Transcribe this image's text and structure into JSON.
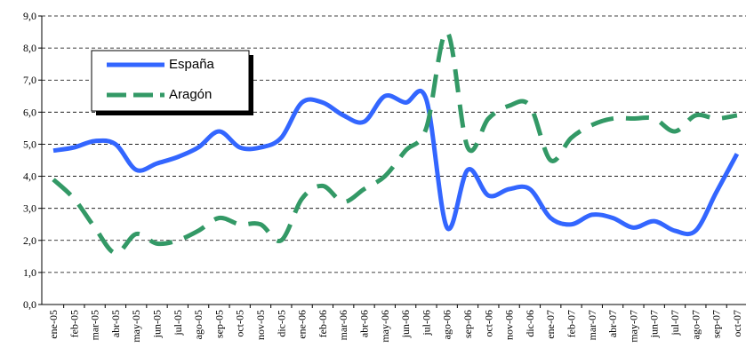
{
  "chart_data": {
    "type": "line",
    "categories": [
      "ene-05",
      "feb-05",
      "mar-05",
      "abr-05",
      "may-05",
      "jun-05",
      "jul-05",
      "ago-05",
      "sep-05",
      "oct-05",
      "nov-05",
      "dic-05",
      "ene-06",
      "feb-06",
      "mar-06",
      "abr-06",
      "may-06",
      "jun-06",
      "jul-06",
      "ago-06",
      "sep-06",
      "oct-06",
      "nov-06",
      "dic-06",
      "ene-07",
      "feb-07",
      "mar-07",
      "abr-07",
      "may-07",
      "jun-07",
      "jul-07",
      "ago-07",
      "sep-07",
      "oct-07"
    ],
    "series": [
      {
        "name": "España",
        "color": "#3366ff",
        "values": [
          4.8,
          4.9,
          5.1,
          5.0,
          4.2,
          4.4,
          4.6,
          4.9,
          5.4,
          4.9,
          4.9,
          5.2,
          6.3,
          6.3,
          5.9,
          5.7,
          6.5,
          6.3,
          6.4,
          2.4,
          4.2,
          3.4,
          3.6,
          3.6,
          2.7,
          2.5,
          2.8,
          2.7,
          2.4,
          2.6,
          2.3,
          2.3,
          3.5,
          4.7
        ]
      },
      {
        "name": "Aragón",
        "color": "#339966",
        "values": [
          3.9,
          3.3,
          2.4,
          1.6,
          2.2,
          1.9,
          2.0,
          2.3,
          2.7,
          2.5,
          2.5,
          2.0,
          3.3,
          3.7,
          3.2,
          3.6,
          4.0,
          4.8,
          5.5,
          8.5,
          4.9,
          5.8,
          6.2,
          6.2,
          4.5,
          5.2,
          5.6,
          5.8,
          5.8,
          5.8,
          5.4,
          5.9,
          5.8,
          5.9
        ]
      }
    ],
    "ylim": [
      0,
      9
    ],
    "yticks": [
      {
        "value": 0,
        "label": "0,0"
      },
      {
        "value": 1,
        "label": "1,0"
      },
      {
        "value": 2,
        "label": "2,0"
      },
      {
        "value": 3,
        "label": "3,0"
      },
      {
        "value": 4,
        "label": "4,0"
      },
      {
        "value": 5,
        "label": "5,0"
      },
      {
        "value": 6,
        "label": "6,0"
      },
      {
        "value": 7,
        "label": "7,0"
      },
      {
        "value": 8,
        "label": "8,0"
      },
      {
        "value": 9,
        "label": "9,0"
      }
    ],
    "grid": true,
    "legend": "upper left"
  }
}
